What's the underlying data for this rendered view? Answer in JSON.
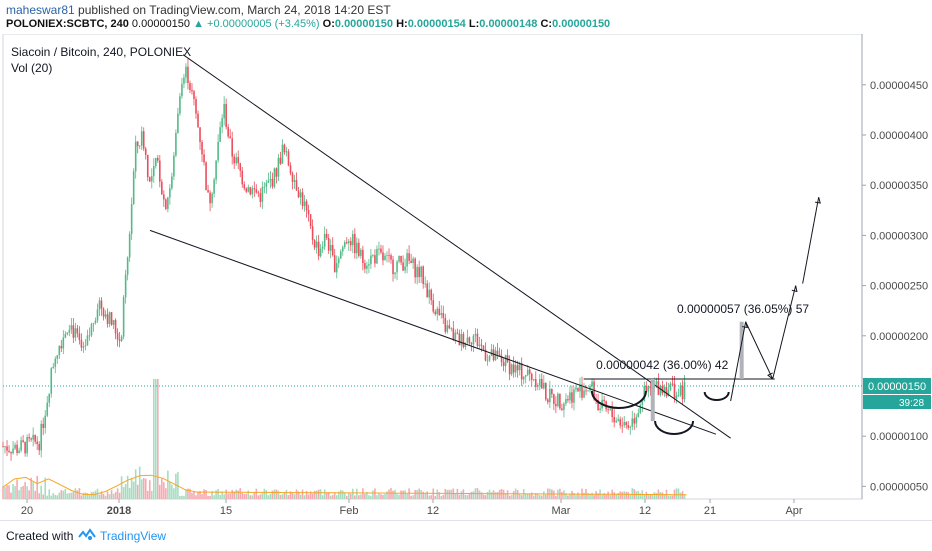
{
  "header": {
    "username": "maheswar81",
    "publish_text": "published on TradingView.com, March 24, 2018 14:20 EST",
    "symbol": "POLONIEX:SCBTC, 240",
    "last": "0.00000150",
    "change": "▲ +0.00000005 (+3.45%)",
    "o_label": "O:",
    "o_value": "0.00000150",
    "h_label": "H:",
    "h_value": "0.00000154",
    "l_label": "L:",
    "l_value": "0.00000148",
    "c_label": "C:",
    "c_value": "0.00000150"
  },
  "chart_data": {
    "type": "candlestick",
    "title": "Siacoin / Bitcoin, 240, POLONIEX",
    "volume_label": "Vol (20)",
    "x_ticks": [
      "20",
      "2018",
      "15",
      "Feb",
      "12",
      "Mar",
      "12",
      "21",
      "Apr"
    ],
    "y_ticks": [
      "0.00000450",
      "0.00000400",
      "0.00000350",
      "0.00000300",
      "0.00000250",
      "0.00000200",
      "0.00000150",
      "0.00000100",
      "0.00000050"
    ],
    "y_range": [
      4e-07,
      5e-06
    ],
    "last_price_label": "0.00000150",
    "countdown_label": "39:28",
    "price_path": [
      [
        0.0,
        9e-07
      ],
      [
        0.02,
        8.8e-07
      ],
      [
        0.05,
        9.5e-07
      ],
      [
        0.07,
        1.8e-06
      ],
      [
        0.09,
        2.15e-06
      ],
      [
        0.11,
        1.8e-06
      ],
      [
        0.13,
        2.35e-06
      ],
      [
        0.15,
        2.1e-06
      ],
      [
        0.16,
        1.95e-06
      ],
      [
        0.17,
        2.8e-06
      ],
      [
        0.18,
        3.85e-06
      ],
      [
        0.19,
        4e-06
      ],
      [
        0.2,
        3.5e-06
      ],
      [
        0.21,
        3.75e-06
      ],
      [
        0.22,
        3.3e-06
      ],
      [
        0.23,
        3.55e-06
      ],
      [
        0.24,
        4.45e-06
      ],
      [
        0.25,
        4.65e-06
      ],
      [
        0.26,
        4.3e-06
      ],
      [
        0.27,
        3.9e-06
      ],
      [
        0.28,
        3.3e-06
      ],
      [
        0.29,
        3.75e-06
      ],
      [
        0.3,
        4.3e-06
      ],
      [
        0.31,
        3.85e-06
      ],
      [
        0.33,
        3.5e-06
      ],
      [
        0.35,
        3.4e-06
      ],
      [
        0.37,
        3.6e-06
      ],
      [
        0.38,
        3.85e-06
      ],
      [
        0.39,
        3.7e-06
      ],
      [
        0.41,
        3.3e-06
      ],
      [
        0.42,
        3e-06
      ],
      [
        0.43,
        2.85e-06
      ],
      [
        0.44,
        3e-06
      ],
      [
        0.45,
        2.7e-06
      ],
      [
        0.47,
        3e-06
      ],
      [
        0.49,
        2.75e-06
      ],
      [
        0.51,
        2.8e-06
      ],
      [
        0.53,
        2.7e-06
      ],
      [
        0.55,
        2.75e-06
      ],
      [
        0.57,
        2.6e-06
      ],
      [
        0.58,
        2.4e-06
      ],
      [
        0.6,
        2.1e-06
      ],
      [
        0.62,
        1.95e-06
      ],
      [
        0.64,
        2e-06
      ],
      [
        0.66,
        1.8e-06
      ],
      [
        0.68,
        1.75e-06
      ],
      [
        0.7,
        1.65e-06
      ],
      [
        0.72,
        1.6e-06
      ],
      [
        0.73,
        1.55e-06
      ],
      [
        0.74,
        1.4e-06
      ],
      [
        0.76,
        1.35e-06
      ],
      [
        0.78,
        1.45e-06
      ],
      [
        0.8,
        1.5e-06
      ],
      [
        0.81,
        1.3e-06
      ],
      [
        0.83,
        1.2e-06
      ],
      [
        0.85,
        1.1e-06
      ],
      [
        0.86,
        1.2e-06
      ],
      [
        0.87,
        1.4e-06
      ],
      [
        0.89,
        1.5e-06
      ],
      [
        0.91,
        1.48e-06
      ],
      [
        0.92,
        1.4e-06
      ],
      [
        0.93,
        1.5e-06
      ]
    ],
    "trendlines": [
      {
        "name": "upper-wedge-line",
        "from": [
          0.245,
          4.8e-06
        ],
        "to": [
          0.99,
          9.8e-07
        ]
      },
      {
        "name": "lower-wedge-line",
        "from": [
          0.2,
          3.05e-06
        ],
        "to": [
          0.97,
          1.02e-06
        ]
      },
      {
        "name": "neckline",
        "from": [
          0.79,
          1.57e-06
        ],
        "to": [
          1.05,
          1.57e-06
        ]
      }
    ],
    "projections": [
      {
        "label": "0.00000042 (36.00%) 42"
      },
      {
        "label": "0.00000057 (36.05%) 57"
      }
    ]
  },
  "footer": {
    "created_with": "Created with",
    "brand": "TradingView"
  }
}
